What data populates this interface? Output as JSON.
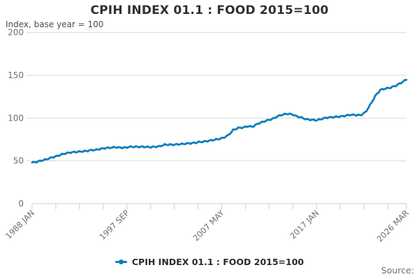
{
  "title": "CPIH INDEX 01.1 : FOOD 2015=100",
  "subtitle": "Index, base year = 100",
  "source_label": "Source:",
  "legend": {
    "label": "CPIH INDEX 01.1 : FOOD 2015=100"
  },
  "colors": {
    "line": "#117dbe",
    "grid": "#d9d9d9",
    "axis": "#c2cde8",
    "tick_text": "#6e6e6e"
  },
  "chart_data": {
    "type": "line",
    "title": "CPIH INDEX 01.1 : FOOD 2015=100",
    "ylabel": "Index, base year = 100",
    "ylim": [
      0,
      200
    ],
    "y_ticks": [
      0,
      50,
      100,
      150,
      200
    ],
    "x_start": "1988-01",
    "x_end": "2026-03",
    "x_tick_labels": [
      "1988 JAN",
      "1997 SEP",
      "2007 MAY",
      "2017 JAN",
      "2026 MAR"
    ],
    "minor_tick_count": 17,
    "labeled_tick_indices": [
      0,
      4,
      8,
      12,
      16
    ],
    "grid": "horizontal",
    "legend_position": "bottom",
    "series": [
      {
        "name": "CPIH INDEX 01.1 : FOOD 2015=100",
        "color": "#117dbe",
        "points": [
          [
            "1988-01",
            48
          ],
          [
            "1988-07",
            49
          ],
          [
            "1989-01",
            50.5
          ],
          [
            "1989-07",
            52
          ],
          [
            "1990-01",
            54
          ],
          [
            "1990-07",
            55.5
          ],
          [
            "1991-01",
            57.5
          ],
          [
            "1991-07",
            59
          ],
          [
            "1992-01",
            60
          ],
          [
            "1992-07",
            60.5
          ],
          [
            "1993-01",
            61
          ],
          [
            "1993-07",
            61.5
          ],
          [
            "1994-01",
            62.5
          ],
          [
            "1994-07",
            63
          ],
          [
            "1995-01",
            64
          ],
          [
            "1995-07",
            65
          ],
          [
            "1996-01",
            65.5
          ],
          [
            "1996-07",
            66
          ],
          [
            "1997-01",
            65.5
          ],
          [
            "1997-07",
            65.5
          ],
          [
            "1998-01",
            66.5
          ],
          [
            "1998-07",
            66.5
          ],
          [
            "1999-01",
            66.5
          ],
          [
            "1999-07",
            66.5
          ],
          [
            "2000-01",
            66
          ],
          [
            "2000-07",
            66.5
          ],
          [
            "2001-01",
            67
          ],
          [
            "2001-07",
            69
          ],
          [
            "2002-01",
            69
          ],
          [
            "2002-07",
            69
          ],
          [
            "2003-01",
            69.5
          ],
          [
            "2003-07",
            70
          ],
          [
            "2004-01",
            70.5
          ],
          [
            "2004-07",
            71
          ],
          [
            "2005-01",
            72
          ],
          [
            "2005-07",
            72.5
          ],
          [
            "2006-01",
            73.5
          ],
          [
            "2006-07",
            74.5
          ],
          [
            "2007-01",
            75.5
          ],
          [
            "2007-07",
            77
          ],
          [
            "2008-01",
            80
          ],
          [
            "2008-07",
            86
          ],
          [
            "2009-01",
            88.5
          ],
          [
            "2009-07",
            89
          ],
          [
            "2010-01",
            90.5
          ],
          [
            "2010-07",
            90
          ],
          [
            "2011-01",
            93.5
          ],
          [
            "2011-07",
            95.5
          ],
          [
            "2012-01",
            97.5
          ],
          [
            "2012-07",
            99
          ],
          [
            "2013-01",
            102
          ],
          [
            "2013-07",
            104
          ],
          [
            "2014-01",
            105
          ],
          [
            "2014-07",
            104.5
          ],
          [
            "2015-01",
            102
          ],
          [
            "2015-07",
            100.5
          ],
          [
            "2016-01",
            98.5
          ],
          [
            "2016-07",
            98
          ],
          [
            "2017-01",
            97.5
          ],
          [
            "2017-07",
            99
          ],
          [
            "2018-01",
            100.5
          ],
          [
            "2018-07",
            101
          ],
          [
            "2019-01",
            101.5
          ],
          [
            "2019-07",
            102
          ],
          [
            "2020-01",
            103
          ],
          [
            "2020-07",
            104
          ],
          [
            "2021-01",
            103.5
          ],
          [
            "2021-07",
            103.5
          ],
          [
            "2022-01",
            107
          ],
          [
            "2022-07",
            116
          ],
          [
            "2023-01",
            126
          ],
          [
            "2023-07",
            133
          ],
          [
            "2024-01",
            134.5
          ],
          [
            "2024-07",
            135.5
          ],
          [
            "2025-01",
            137.5
          ],
          [
            "2025-07",
            140.5
          ],
          [
            "2026-01",
            144
          ],
          [
            "2026-03",
            145
          ]
        ]
      }
    ]
  }
}
